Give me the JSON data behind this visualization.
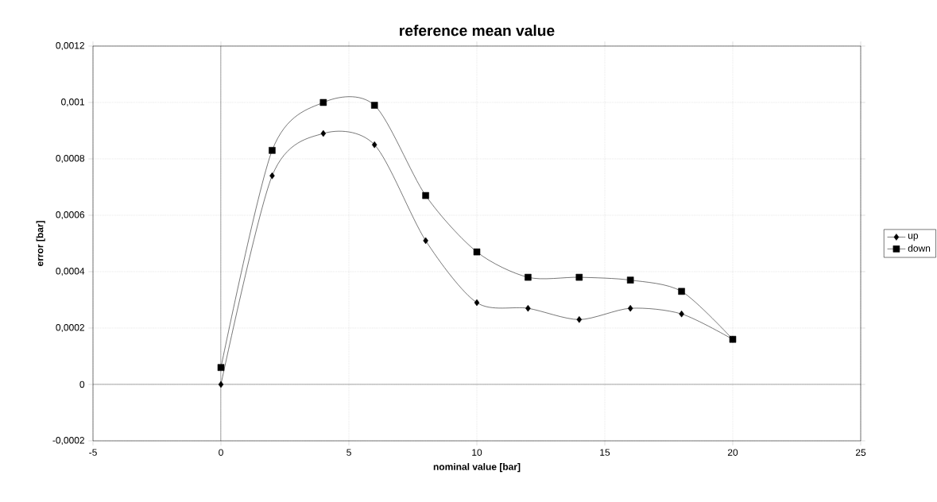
{
  "chart_data": {
    "type": "line",
    "title": "reference mean value",
    "xlabel": "nominal value [bar]",
    "ylabel": "error [bar]",
    "x": [
      0,
      2,
      4,
      6,
      8,
      10,
      12,
      14,
      16,
      18,
      20
    ],
    "series": [
      {
        "name": "up",
        "color": "#000000",
        "marker": "diamond",
        "values": [
          0,
          0.00074,
          0.00089,
          0.00085,
          0.00051,
          0.00029,
          0.00027,
          0.00023,
          0.00027,
          0.00025,
          0.00016
        ]
      },
      {
        "name": "down",
        "color": "#000000",
        "marker": "square",
        "values": [
          6e-05,
          0.00083,
          0.001,
          0.00099,
          0.00067,
          0.00047,
          0.00038,
          0.00038,
          0.00037,
          0.00033,
          0.00016
        ]
      }
    ],
    "xlim": [
      -5,
      25
    ],
    "xticks": [
      -5,
      0,
      5,
      10,
      15,
      20,
      25
    ],
    "ylim": [
      -0.0002,
      0.0012
    ],
    "yticks": [
      {
        "value": -0.0002,
        "label": "-0,0002"
      },
      {
        "value": 0,
        "label": "0"
      },
      {
        "value": 0.0002,
        "label": "0,0002"
      },
      {
        "value": 0.0004,
        "label": "0,0004"
      },
      {
        "value": 0.0006,
        "label": "0,0006"
      },
      {
        "value": 0.0008,
        "label": "0,0008"
      },
      {
        "value": 0.001,
        "label": "0,001"
      },
      {
        "value": 0.0012,
        "label": "0,0012"
      }
    ],
    "grid": true,
    "legend": "right",
    "line_style": "solid"
  }
}
